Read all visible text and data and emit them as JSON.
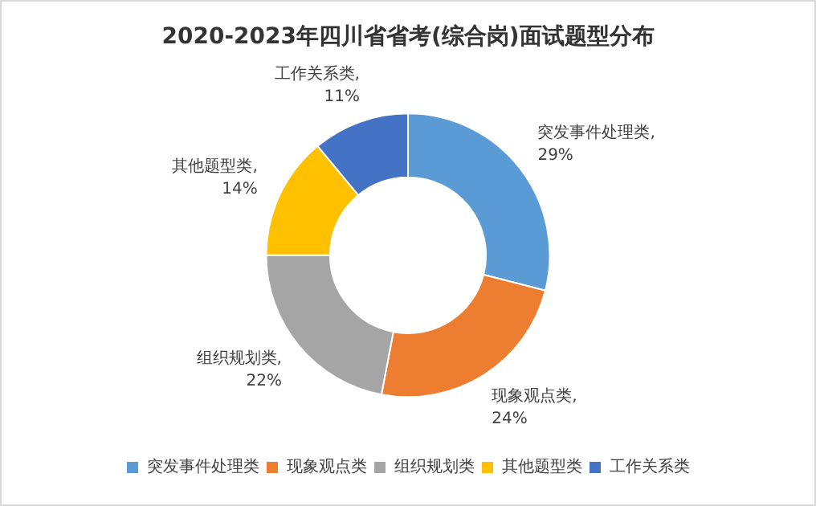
{
  "chart_data": {
    "type": "donut",
    "title": "2020-2023年四川省省考(综合岗)面试题型分布",
    "categories": [
      "突发事件处理类",
      "现象观点类",
      "组织规划类",
      "其他题型类",
      "工作关系类"
    ],
    "values": [
      29,
      24,
      22,
      14,
      11
    ],
    "value_labels": [
      "突发事件处理类, 29%",
      "现象观点类, 24%",
      "组织规划类, 22%",
      "其他题型类, 14%",
      "工作关系类, 11%"
    ],
    "colors": [
      "#5b9bd5",
      "#ed7d31",
      "#a5a5a5",
      "#ffc000",
      "#4472c4"
    ],
    "legend": "bottom"
  }
}
